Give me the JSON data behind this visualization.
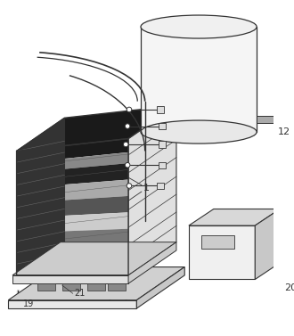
{
  "bg_color": "#ffffff",
  "lc": "#333333",
  "label_12": "12",
  "label_1": "1",
  "label_19": "19",
  "label_21": "21",
  "label_20": "20",
  "figsize": [
    3.3,
    3.77
  ],
  "dpi": 100
}
